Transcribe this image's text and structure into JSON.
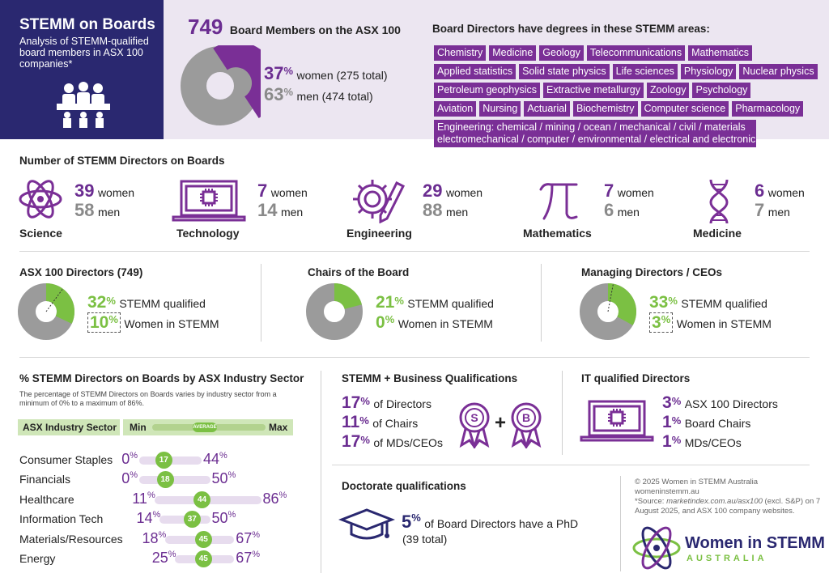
{
  "header": {
    "title": "STEMM on Boards",
    "subtitle": "Analysis of  STEMM-qualified board members in ASX 100 companies*",
    "total_num": "749",
    "total_label": "Board Members on the ASX 100",
    "women_pct": "37",
    "women_label": "women (275 total)",
    "men_pct": "63",
    "men_label": "men (474 total)",
    "degrees_title": "Board Directors have degrees in these STEMM areas:",
    "tags_row1": [
      "Chemistry",
      "Medicine",
      "Geology",
      "Telecommunications",
      "Mathematics"
    ],
    "tags_row2": [
      "Applied statistics",
      "Solid state physics",
      "Life sciences",
      "Physiology",
      "Nuclear physics"
    ],
    "tags_row3": [
      "Petroleum geophysics",
      "Extractive metallurgy",
      "Zoology",
      "Psychology"
    ],
    "tags_row4": [
      "Aviation",
      "Nursing",
      "Actuarial",
      "Biochemistry",
      "Computer science",
      "Pharmacology"
    ],
    "tag_eng_1": "Engineering: chemical / mining / ocean / mechanical / civil / materials",
    "tag_eng_2": "electromechanical / computer / environmental / electrical and electronic"
  },
  "numbers": {
    "title": "Number of STEMM Directors on Boards",
    "women_word": "women",
    "men_word": "men",
    "fields": [
      {
        "name": "Science",
        "women": "39",
        "men": "58",
        "icon": "atom-icon"
      },
      {
        "name": "Technology",
        "women": "7",
        "men": "14",
        "icon": "laptop-chip-icon"
      },
      {
        "name": "Engineering",
        "women": "29",
        "men": "88",
        "icon": "gear-pencil-icon"
      },
      {
        "name": "Mathematics",
        "women": "7",
        "men": "6",
        "icon": "pi-icon"
      },
      {
        "name": "Medicine",
        "women": "6",
        "men": "7",
        "icon": "dna-icon"
      }
    ]
  },
  "groups": [
    {
      "title": "ASX 100 Directors (749)",
      "stemm_pct": "32",
      "women_pct": "10",
      "stemm_label": "STEMM qualified",
      "women_label": "Women in STEMM",
      "stemm_frac": 0.32,
      "women_frac": 0.1
    },
    {
      "title": "Chairs of the Board",
      "stemm_pct": "21",
      "women_pct": "0",
      "stemm_label": "STEMM qualified",
      "women_label": "Women in STEMM",
      "stemm_frac": 0.21,
      "women_frac": 0
    },
    {
      "title": "Managing Directors / CEOs",
      "stemm_pct": "33",
      "women_pct": "3",
      "stemm_label": "STEMM qualified",
      "women_label": "Women in STEMM",
      "stemm_frac": 0.33,
      "women_frac": 0.03
    }
  ],
  "sector": {
    "title": "% STEMM Directors on Boards by ASX Industry Sector",
    "note": "The percentage of STEMM Directors on Boards varies by industry sector from a minimum of 0% to a maximum of 86%.",
    "col_sector": "ASX Industry Sector",
    "col_min": "Min",
    "col_avg": "AVERAGE",
    "col_max": "Max",
    "rows": [
      {
        "name": "Consumer Staples",
        "min": "0",
        "avg": "17",
        "max": "44"
      },
      {
        "name": "Financials",
        "min": "0",
        "avg": "18",
        "max": "50"
      },
      {
        "name": "Healthcare",
        "min": "11",
        "avg": "44",
        "max": "86"
      },
      {
        "name": "Information Tech",
        "min": "14",
        "avg": "37",
        "max": "50"
      },
      {
        "name": "Materials/Resources",
        "min": "18",
        "avg": "45",
        "max": "67"
      },
      {
        "name": "Energy",
        "min": "25",
        "avg": "45",
        "max": "67"
      }
    ]
  },
  "business": {
    "title": "STEMM + Business Qualifications",
    "rows": [
      {
        "pct": "17",
        "label": "of Directors"
      },
      {
        "pct": "11",
        "label": "of Chairs"
      },
      {
        "pct": "17",
        "label": "of MDs/CEOs"
      }
    ],
    "badge_s": "S",
    "badge_b": "B",
    "plus": "+"
  },
  "it": {
    "title": "IT qualified Directors",
    "rows": [
      {
        "pct": "3",
        "label": "ASX 100 Directors"
      },
      {
        "pct": "1",
        "label": "Board Chairs"
      },
      {
        "pct": "1",
        "label": "MDs/CEOs"
      }
    ]
  },
  "doctorate": {
    "title": "Doctorate qualifications",
    "pct": "5",
    "label": "of Board Directors have a PhD",
    "sub": "(39 total)"
  },
  "footer": {
    "copyright": "© 2025 Women in STEMM Australia",
    "site": "womeninstemm.au",
    "source_1": "*Source: ",
    "source_italic": "marketindex.com.au/asx100",
    "source_2": " (excl. S&P) on 7 August 2025, and ASX 100 company websites.",
    "logo_line1": "Women in STEMM",
    "logo_line2": "AUSTRALIA"
  },
  "symbols": {
    "percent": "%"
  },
  "colors": {
    "navy": "#2a2870",
    "purple": "#7a2f96",
    "green": "#7bc043",
    "grey": "#9b9b9b",
    "lavender": "#ece6f1"
  }
}
